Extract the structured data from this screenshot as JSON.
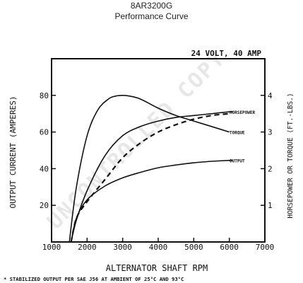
{
  "header": {
    "title": "8AR3200G",
    "subtitle": "Performance Curve"
  },
  "chart_data": {
    "type": "line",
    "title": "24 VOLT, 40 AMP",
    "xlabel": "ALTERNATOR SHAFT RPM",
    "ylabel_left": "OUTPUT CURRENT (AMPERES)",
    "ylabel_right": "HORSEPOWER OR TORQUE (FT.-LBS.)",
    "footnote": "* STABILIZED OUTPUT PER SAE J56 AT AMBIENT OF 25°C AND 93°C",
    "watermark": "UNCONTROLLED COPY",
    "xlim": [
      1000,
      7000
    ],
    "ylim_left": [
      0,
      100
    ],
    "ylim_right": [
      0,
      5
    ],
    "x_ticks": [
      "1000",
      "2000",
      "3000",
      "4000",
      "5000",
      "6000",
      "7000"
    ],
    "y_ticks_left": [
      "20",
      "40",
      "60",
      "80"
    ],
    "y_ticks_right": [
      "1",
      "2",
      "3",
      "4"
    ],
    "grid": false,
    "series": [
      {
        "name": "HORSEPOWER",
        "axis": "right",
        "style": "solid",
        "x": [
          1550,
          1700,
          2000,
          2500,
          3000,
          3500,
          4000,
          4500,
          5000,
          5500,
          6000,
          6100
        ],
        "y": [
          0.0,
          0.6,
          1.4,
          2.35,
          2.9,
          3.15,
          3.3,
          3.4,
          3.45,
          3.5,
          3.55,
          3.55
        ]
      },
      {
        "name": "TORQUE",
        "axis": "right",
        "style": "solid",
        "x": [
          1500,
          1700,
          2000,
          2300,
          2600,
          2800,
          3000,
          3200,
          3500,
          4000,
          4500,
          5000,
          5500,
          6000
        ],
        "y": [
          0.0,
          1.5,
          2.9,
          3.6,
          3.9,
          3.98,
          4.0,
          3.98,
          3.9,
          3.65,
          3.45,
          3.3,
          3.15,
          3.0
        ]
      },
      {
        "name": "OUTPUT",
        "axis": "left",
        "style": "solid",
        "x": [
          1550,
          1700,
          2000,
          2500,
          3000,
          3500,
          4000,
          4500,
          5000,
          5500,
          6000,
          6100
        ],
        "y": [
          0,
          13,
          23,
          30.5,
          35,
          38,
          40.5,
          42,
          43.2,
          44,
          44.5,
          44.5
        ]
      },
      {
        "name": "OUTPUT (93°C)",
        "axis": "left",
        "style": "dashed",
        "x": [
          1550,
          1700,
          2000,
          2500,
          3000,
          3500,
          4000,
          4500,
          5000,
          5500,
          6000
        ],
        "y": [
          0,
          13,
          22,
          34,
          46,
          54,
          60,
          64,
          67,
          69,
          70
        ]
      }
    ]
  }
}
